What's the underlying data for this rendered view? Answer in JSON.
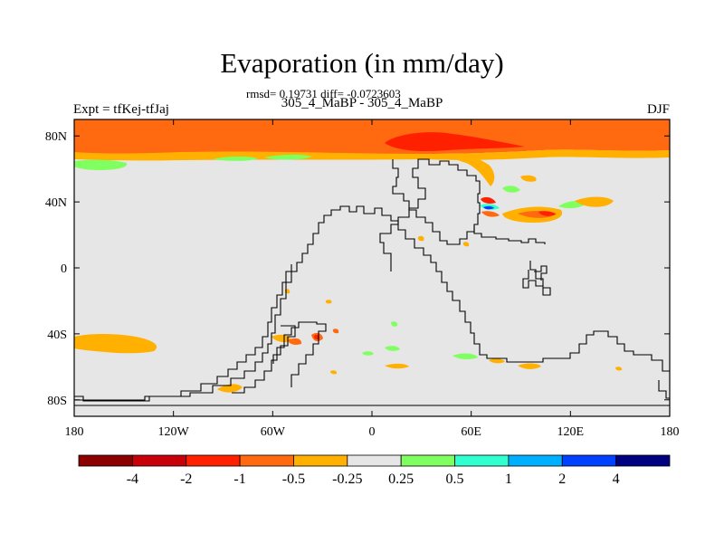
{
  "figure": {
    "title": "Evaporation (in mm/day)",
    "stats": "rmsd= 0.19731 diff= -0.0723603",
    "subtitle": "305_4_MaBP - 305_4_MaBP",
    "left_label": "Expt = tfKej-tfJaj",
    "right_label": "DJF"
  },
  "map": {
    "projection": "cylindrical-equidistant",
    "lon_range": [
      -180,
      180
    ],
    "lat_range": [
      -90,
      90
    ],
    "x_tick_labels": [
      "180",
      "120W",
      "60W",
      "0",
      "60E",
      "120E",
      "180"
    ],
    "y_tick_labels": [
      "80N",
      "40N",
      "0",
      "40S",
      "80S"
    ],
    "background_color": "#e6e6e6"
  },
  "colorbar": {
    "colors": [
      "#8b0000",
      "#c8000a",
      "#ff2000",
      "#ff6a10",
      "#ffb000",
      "#e6e6e6",
      "#80ff60",
      "#30ffd0",
      "#00b0ff",
      "#0040ff",
      "#000080"
    ],
    "labels": [
      "-4",
      "-2",
      "-1",
      "-0.5",
      "-0.25",
      "0.25",
      "0.5",
      "1",
      "2",
      "4"
    ]
  }
}
